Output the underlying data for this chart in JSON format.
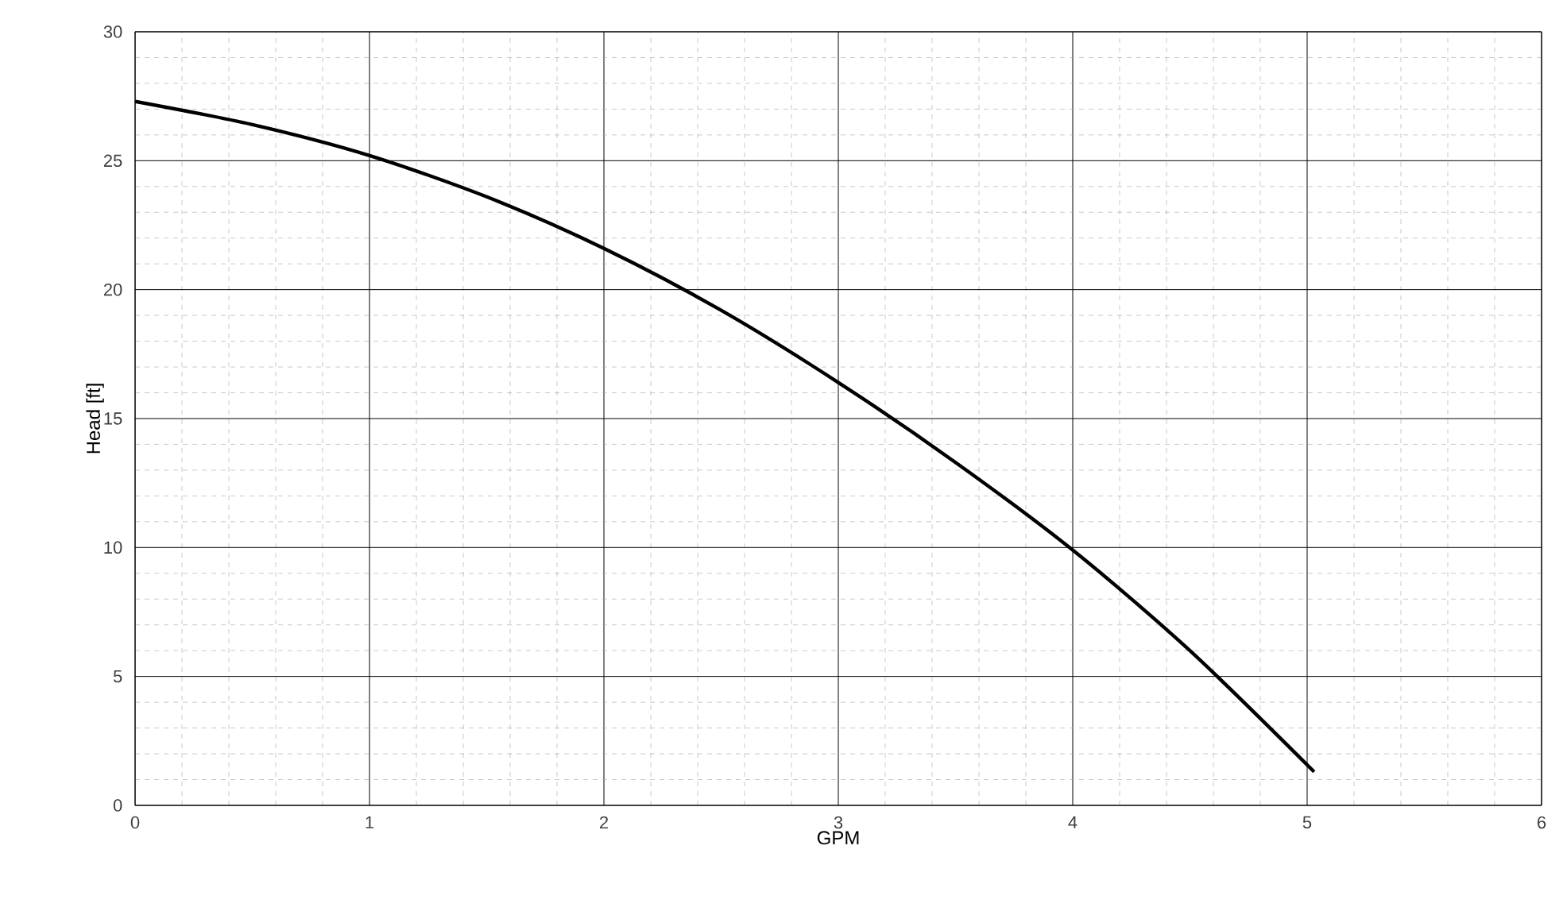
{
  "chart_data": {
    "type": "line",
    "xlabel": "GPM",
    "ylabel": "Head [ft]",
    "x": [
      0,
      0.5,
      1,
      1.5,
      2,
      2.5,
      3,
      3.5,
      4,
      4.5,
      5.03
    ],
    "series": [
      {
        "color": "#000000",
        "values": [
          27.3,
          26.4,
          25.2,
          23.6,
          21.6,
          19.2,
          16.4,
          13.3,
          9.9,
          6.0,
          1.3
        ]
      }
    ],
    "xlim": [
      0,
      6
    ],
    "ylim": [
      0,
      30
    ],
    "xticks": [
      0,
      1,
      2,
      3,
      4,
      5,
      6
    ],
    "yticks": [
      0,
      5,
      10,
      15,
      20,
      25,
      30
    ],
    "grid": true,
    "marker": "none",
    "line_style": "solid"
  }
}
